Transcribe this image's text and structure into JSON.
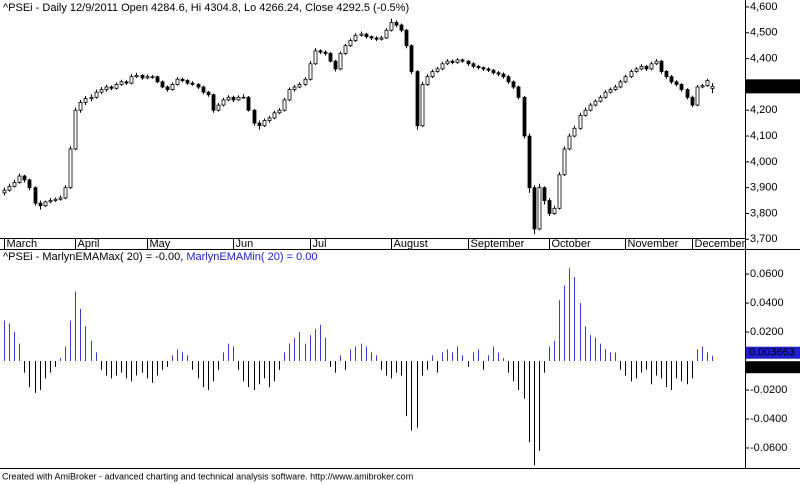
{
  "chart_data": [
    {
      "type": "candlestick",
      "title": "^PSEi - Daily 12/9/2011 Open 4284.6, Hi 4304.8, Lo 4266.24, Close 4292.5 (-0.5%)",
      "ohlc": [
        [
          3880,
          3900,
          3870,
          3890
        ],
        [
          3890,
          3915,
          3885,
          3905
        ],
        [
          3905,
          3930,
          3900,
          3920
        ],
        [
          3920,
          3955,
          3915,
          3945
        ],
        [
          3945,
          3950,
          3920,
          3930
        ],
        [
          3930,
          3935,
          3890,
          3900
        ],
        [
          3900,
          3905,
          3830,
          3840
        ],
        [
          3840,
          3850,
          3815,
          3830
        ],
        [
          3830,
          3850,
          3825,
          3845
        ],
        [
          3845,
          3860,
          3840,
          3850
        ],
        [
          3850,
          3862,
          3845,
          3855
        ],
        [
          3855,
          3870,
          3850,
          3860
        ],
        [
          3860,
          3910,
          3855,
          3900
        ],
        [
          3900,
          4060,
          3895,
          4050
        ],
        [
          4050,
          4210,
          4045,
          4200
        ],
        [
          4200,
          4240,
          4190,
          4230
        ],
        [
          4230,
          4255,
          4220,
          4245
        ],
        [
          4245,
          4262,
          4235,
          4250
        ],
        [
          4250,
          4280,
          4245,
          4270
        ],
        [
          4270,
          4290,
          4262,
          4280
        ],
        [
          4280,
          4298,
          4272,
          4290
        ],
        [
          4290,
          4296,
          4278,
          4285
        ],
        [
          4285,
          4308,
          4280,
          4300
        ],
        [
          4300,
          4318,
          4295,
          4310
        ],
        [
          4310,
          4316,
          4298,
          4305
        ],
        [
          4305,
          4340,
          4300,
          4330
        ],
        [
          4330,
          4345,
          4325,
          4335
        ],
        [
          4335,
          4340,
          4318,
          4325
        ],
        [
          4325,
          4338,
          4320,
          4330
        ],
        [
          4330,
          4336,
          4322,
          4330
        ],
        [
          4330,
          4334,
          4305,
          4310
        ],
        [
          4310,
          4315,
          4285,
          4290
        ],
        [
          4290,
          4296,
          4272,
          4280
        ],
        [
          4280,
          4308,
          4276,
          4300
        ],
        [
          4300,
          4328,
          4296,
          4320
        ],
        [
          4320,
          4326,
          4308,
          4315
        ],
        [
          4315,
          4320,
          4298,
          4305
        ],
        [
          4305,
          4312,
          4295,
          4300
        ],
        [
          4300,
          4305,
          4282,
          4290
        ],
        [
          4290,
          4295,
          4262,
          4270
        ],
        [
          4270,
          4275,
          4252,
          4260
        ],
        [
          4260,
          4265,
          4190,
          4200
        ],
        [
          4200,
          4228,
          4195,
          4220
        ],
        [
          4220,
          4248,
          4215,
          4240
        ],
        [
          4240,
          4258,
          4235,
          4250
        ],
        [
          4250,
          4256,
          4232,
          4240
        ],
        [
          4240,
          4258,
          4236,
          4250
        ],
        [
          4250,
          4262,
          4245,
          4250
        ],
        [
          4250,
          4255,
          4195,
          4200
        ],
        [
          4200,
          4205,
          4140,
          4150
        ],
        [
          4150,
          4160,
          4125,
          4140
        ],
        [
          4140,
          4168,
          4135,
          4160
        ],
        [
          4160,
          4178,
          4152,
          4170
        ],
        [
          4170,
          4198,
          4165,
          4190
        ],
        [
          4190,
          4208,
          4185,
          4200
        ],
        [
          4200,
          4248,
          4195,
          4240
        ],
        [
          4240,
          4288,
          4235,
          4280
        ],
        [
          4280,
          4298,
          4272,
          4290
        ],
        [
          4290,
          4308,
          4285,
          4300
        ],
        [
          4300,
          4328,
          4295,
          4320
        ],
        [
          4320,
          4390,
          4315,
          4380
        ],
        [
          4380,
          4440,
          4375,
          4430
        ],
        [
          4430,
          4436,
          4418,
          4425
        ],
        [
          4425,
          4432,
          4412,
          4420
        ],
        [
          4420,
          4425,
          4385,
          4390
        ],
        [
          4390,
          4395,
          4350,
          4360
        ],
        [
          4360,
          4428,
          4355,
          4420
        ],
        [
          4420,
          4458,
          4415,
          4450
        ],
        [
          4450,
          4478,
          4445,
          4470
        ],
        [
          4470,
          4498,
          4465,
          4490
        ],
        [
          4490,
          4505,
          4485,
          4495
        ],
        [
          4495,
          4500,
          4478,
          4485
        ],
        [
          4485,
          4490,
          4472,
          4480
        ],
        [
          4480,
          4486,
          4468,
          4475
        ],
        [
          4475,
          4488,
          4470,
          4480
        ],
        [
          4480,
          4518,
          4476,
          4510
        ],
        [
          4510,
          4555,
          4505,
          4540
        ],
        [
          4540,
          4548,
          4522,
          4530
        ],
        [
          4530,
          4536,
          4502,
          4510
        ],
        [
          4510,
          4515,
          4440,
          4450
        ],
        [
          4450,
          4455,
          4340,
          4350
        ],
        [
          4350,
          4355,
          4125,
          4140
        ],
        [
          4140,
          4310,
          4135,
          4300
        ],
        [
          4300,
          4340,
          4295,
          4330
        ],
        [
          4330,
          4358,
          4325,
          4350
        ],
        [
          4350,
          4368,
          4345,
          4360
        ],
        [
          4360,
          4388,
          4355,
          4380
        ],
        [
          4380,
          4398,
          4375,
          4390
        ],
        [
          4390,
          4396,
          4378,
          4385
        ],
        [
          4385,
          4402,
          4380,
          4395
        ],
        [
          4395,
          4400,
          4384,
          4390
        ],
        [
          4390,
          4394,
          4372,
          4380
        ],
        [
          4380,
          4386,
          4362,
          4370
        ],
        [
          4370,
          4376,
          4358,
          4365
        ],
        [
          4365,
          4370,
          4352,
          4360
        ],
        [
          4360,
          4366,
          4348,
          4355
        ],
        [
          4355,
          4360,
          4338,
          4345
        ],
        [
          4345,
          4352,
          4332,
          4340
        ],
        [
          4340,
          4346,
          4322,
          4330
        ],
        [
          4330,
          4336,
          4302,
          4310
        ],
        [
          4310,
          4315,
          4282,
          4290
        ],
        [
          4290,
          4296,
          4242,
          4250
        ],
        [
          4250,
          4255,
          4090,
          4100
        ],
        [
          4100,
          4110,
          3880,
          3900
        ],
        [
          3900,
          3910,
          3720,
          3740
        ],
        [
          3740,
          3915,
          3735,
          3900
        ],
        [
          3900,
          3905,
          3835,
          3850
        ],
        [
          3850,
          3860,
          3790,
          3800
        ],
        [
          3800,
          3830,
          3795,
          3820
        ],
        [
          3820,
          3960,
          3815,
          3950
        ],
        [
          3950,
          4060,
          3945,
          4050
        ],
        [
          4050,
          4110,
          4045,
          4100
        ],
        [
          4100,
          4140,
          4095,
          4130
        ],
        [
          4130,
          4190,
          4125,
          4180
        ],
        [
          4180,
          4210,
          4175,
          4200
        ],
        [
          4200,
          4228,
          4195,
          4220
        ],
        [
          4220,
          4242,
          4215,
          4235
        ],
        [
          4235,
          4258,
          4230,
          4250
        ],
        [
          4250,
          4278,
          4245,
          4270
        ],
        [
          4270,
          4288,
          4265,
          4280
        ],
        [
          4280,
          4298,
          4275,
          4290
        ],
        [
          4290,
          4318,
          4285,
          4310
        ],
        [
          4310,
          4338,
          4305,
          4330
        ],
        [
          4330,
          4358,
          4325,
          4350
        ],
        [
          4350,
          4368,
          4345,
          4360
        ],
        [
          4360,
          4378,
          4355,
          4370
        ],
        [
          4370,
          4375,
          4352,
          4360
        ],
        [
          4360,
          4388,
          4355,
          4380
        ],
        [
          4380,
          4398,
          4375,
          4390
        ],
        [
          4390,
          4395,
          4342,
          4350
        ],
        [
          4350,
          4356,
          4322,
          4330
        ],
        [
          4330,
          4336,
          4302,
          4310
        ],
        [
          4310,
          4316,
          4292,
          4300
        ],
        [
          4300,
          4305,
          4272,
          4280
        ],
        [
          4280,
          4285,
          4242,
          4250
        ],
        [
          4250,
          4256,
          4212,
          4220
        ],
        [
          4220,
          4298,
          4215,
          4290
        ],
        [
          4290,
          4302,
          4285,
          4295
        ],
        [
          4295,
          4322,
          4290,
          4315
        ],
        [
          4284.6,
          4304.8,
          4266.24,
          4292.5
        ]
      ],
      "xticks": [
        {
          "value": 0,
          "label": "March"
        },
        {
          "value": 14,
          "label": "April"
        },
        {
          "value": 28,
          "label": "May"
        },
        {
          "value": 45,
          "label": "Jun"
        },
        {
          "value": 60,
          "label": "Jul"
        },
        {
          "value": 76,
          "label": "August"
        },
        {
          "value": 91,
          "label": "September"
        },
        {
          "value": 107,
          "label": "October"
        },
        {
          "value": 122,
          "label": "November"
        },
        {
          "value": 135,
          "label": "December"
        }
      ],
      "ylim": [
        3705,
        4627
      ],
      "yticks": [
        {
          "value": 3700,
          "label": "3,700"
        },
        {
          "value": 3800,
          "label": "3,800"
        },
        {
          "value": 3900,
          "label": "3,900"
        },
        {
          "value": 4000,
          "label": "4,000"
        },
        {
          "value": 4100,
          "label": "4,100"
        },
        {
          "value": 4200,
          "label": "4,200"
        },
        {
          "value": 4300,
          "label": "4,300"
        },
        {
          "value": 4400,
          "label": "4,400"
        },
        {
          "value": 4500,
          "label": "4,500"
        },
        {
          "value": 4600,
          "label": "4,600"
        }
      ],
      "last_value_label": {
        "value": 4292.5,
        "label": "4,292.5"
      },
      "color": "#000000"
    },
    {
      "type": "histogram",
      "title_parts": [
        "^PSEi - MarlynEMAMax( 20) = -0.00, ",
        "MarlynEMAMin( 20) = 0.00"
      ],
      "title_colors": [
        "#000000",
        "#2020d0"
      ],
      "values": [
        0.028,
        0.026,
        0.02,
        0.012,
        -0.008,
        -0.018,
        -0.022,
        -0.02,
        -0.012,
        -0.008,
        -0.004,
        0.002,
        0.01,
        0.028,
        0.048,
        0.036,
        0.024,
        0.014,
        0.006,
        -0.006,
        -0.01,
        -0.012,
        -0.01,
        -0.008,
        -0.012,
        -0.014,
        -0.01,
        -0.008,
        -0.012,
        -0.015,
        -0.01,
        -0.006,
        -0.004,
        0.004,
        0.008,
        0.006,
        0.004,
        -0.006,
        -0.012,
        -0.018,
        -0.02,
        -0.014,
        -0.006,
        0.006,
        0.012,
        0.01,
        -0.006,
        -0.014,
        -0.018,
        -0.02,
        -0.016,
        -0.012,
        -0.018,
        -0.014,
        -0.006,
        0.006,
        0.012,
        0.016,
        0.02,
        0.012,
        0.018,
        0.022,
        0.025,
        0.016,
        -0.004,
        -0.008,
        0.004,
        -0.006,
        0.008,
        0.01,
        0.012,
        0.01,
        0.006,
        0.004,
        -0.006,
        -0.01,
        -0.012,
        -0.008,
        -0.01,
        -0.038,
        -0.048,
        -0.046,
        -0.01,
        -0.006,
        0.004,
        -0.008,
        0.006,
        0.008,
        0.006,
        0.01,
        0.004,
        -0.004,
        0.006,
        0.008,
        -0.006,
        0.004,
        0.01,
        0.006,
        0.002,
        -0.008,
        -0.014,
        -0.02,
        -0.026,
        -0.056,
        -0.072,
        -0.062,
        -0.008,
        0.01,
        0.014,
        0.042,
        0.052,
        0.064,
        0.058,
        0.04,
        0.024,
        0.018,
        0.016,
        0.012,
        0.008,
        0.006,
        0.006,
        -0.006,
        -0.01,
        -0.014,
        -0.012,
        -0.008,
        -0.006,
        -0.016,
        -0.01,
        -0.012,
        -0.018,
        -0.02,
        -0.012,
        -0.014,
        -0.016,
        -0.012,
        0.008,
        0.01,
        0.006,
        0.003663
      ],
      "colors": {
        "positive": "#3a3ad0",
        "negative": "#000000"
      },
      "ylim": [
        -0.0738,
        0.0766
      ],
      "yticks": [
        {
          "value": -0.06,
          "label": "-0.0600"
        },
        {
          "value": -0.04,
          "label": "-0.0400"
        },
        {
          "value": -0.02,
          "label": "-0.0200"
        },
        {
          "value": 0.02,
          "label": "0.0200"
        },
        {
          "value": 0.04,
          "label": "0.0400"
        },
        {
          "value": 0.06,
          "label": "0.0600"
        }
      ],
      "last_value_labels": [
        {
          "value": 0.003663,
          "label": "0.003663",
          "color": "#2020d0"
        },
        {
          "value": -0.00082,
          "label": "-0.00082",
          "color": "#000000"
        }
      ]
    }
  ],
  "footer": "Created with AmiBroker - advanced charting and technical analysis software. http://www.amibroker.com"
}
